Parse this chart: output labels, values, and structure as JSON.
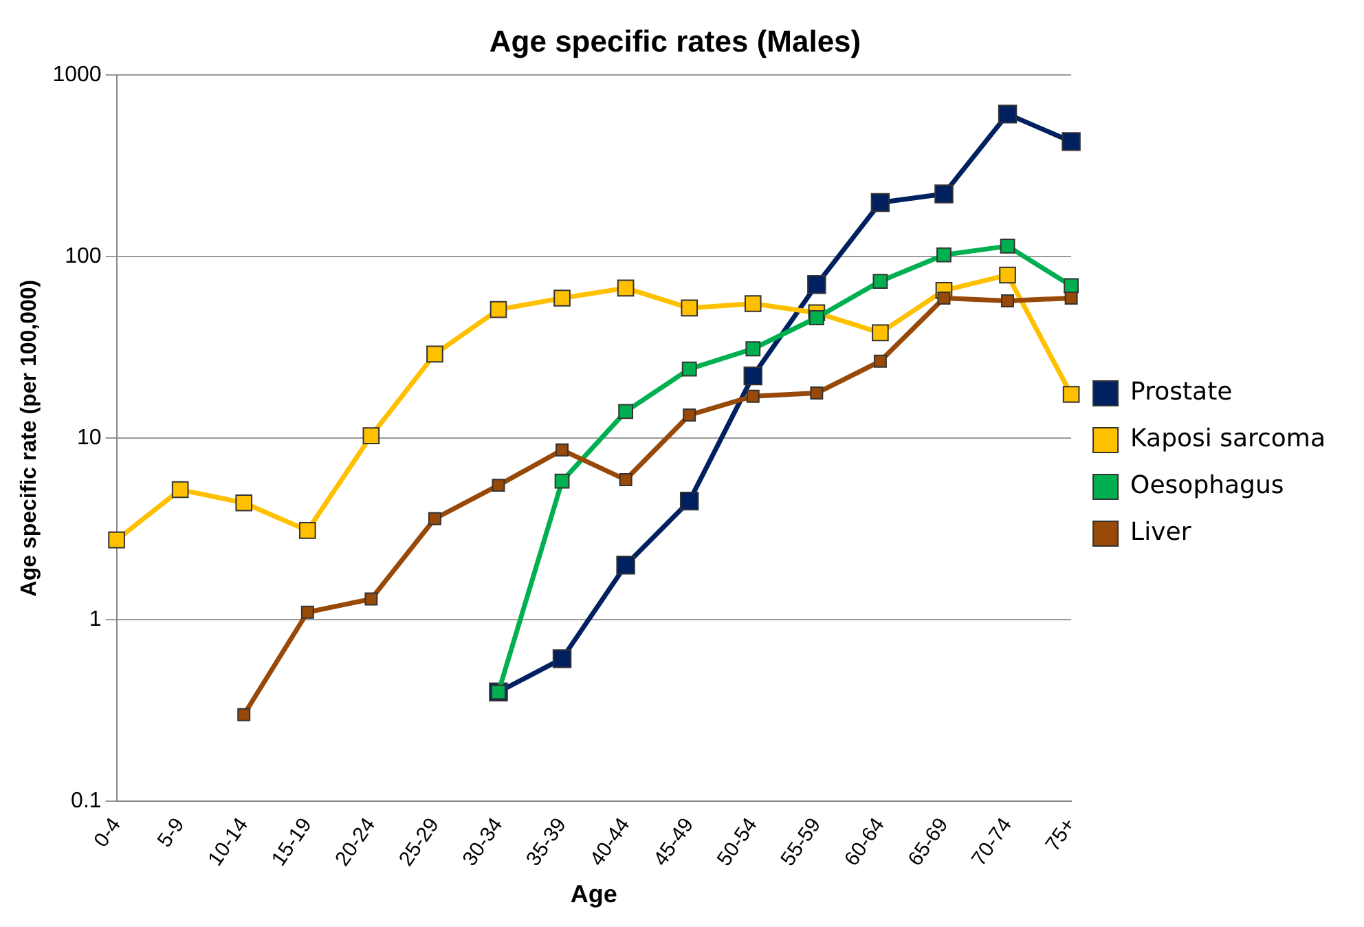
{
  "chart_data": {
    "type": "line",
    "title": "Age specific rates (Males)",
    "xlabel": "Age",
    "ylabel": "Age specific rate (per 100,000)",
    "categories": [
      "0-4",
      "5-9",
      "10-14",
      "15-19",
      "20-24",
      "25-29",
      "30-34",
      "35-39",
      "40-44",
      "45-49",
      "50-54",
      "55-59",
      "60-64",
      "65-69",
      "70-74",
      "75+"
    ],
    "series": [
      {
        "name": "Prostate",
        "color": "#002060",
        "values": [
          null,
          null,
          null,
          null,
          null,
          null,
          0.4,
          0.61,
          2.0,
          4.5,
          22,
          70,
          198,
          221,
          608,
          429
        ]
      },
      {
        "name": "Kaposi sarcoma",
        "color": "#ffc000",
        "values": [
          2.75,
          5.2,
          4.4,
          3.1,
          10.3,
          29,
          51,
          59,
          67,
          52,
          55,
          49,
          38,
          65,
          79,
          17.4
        ]
      },
      {
        "name": "Oesophagus",
        "color": "#00b050",
        "values": [
          null,
          null,
          null,
          null,
          null,
          null,
          0.4,
          5.8,
          14,
          24,
          31,
          46,
          73,
          102,
          114,
          69
        ]
      },
      {
        "name": "Liver",
        "color": "#984807",
        "values": [
          null,
          null,
          0.3,
          1.1,
          1.3,
          3.6,
          5.5,
          8.6,
          5.9,
          13.4,
          17,
          17.7,
          26.5,
          59,
          57,
          59
        ]
      }
    ],
    "log": "y",
    "ylim": [
      0.1,
      1000
    ],
    "yticks": [
      0.1,
      1,
      10,
      100,
      1000
    ],
    "grid": "y",
    "legend": "right",
    "marker": "square",
    "line_style": "solid"
  }
}
